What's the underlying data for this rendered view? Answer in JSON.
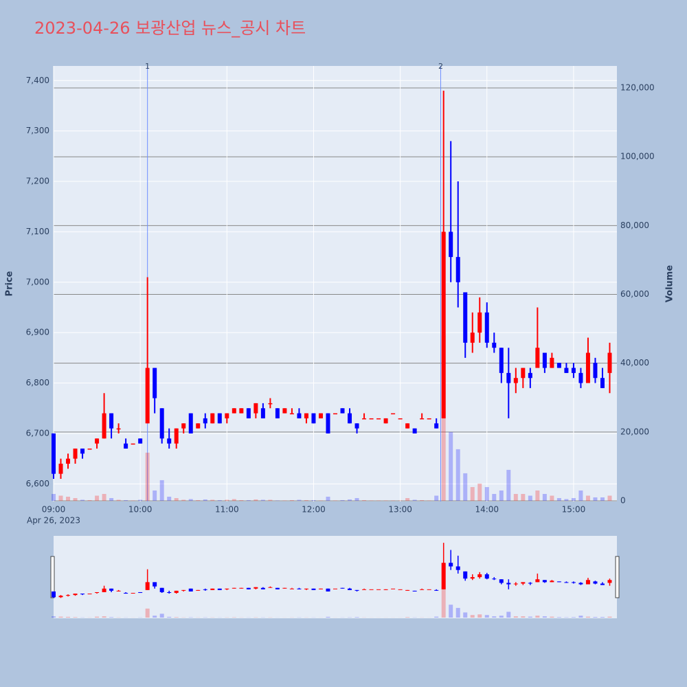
{
  "chart_data": {
    "type": "candlestick",
    "title": "2023-04-26 보광산업 뉴스_공시 차트",
    "y_label": "Price",
    "y2_label": "Volume",
    "x_date_label": "Apr 26, 2023",
    "up_color": "#ff0000",
    "down_color": "#0000ff",
    "xlim": [
      "09:00",
      "15:30"
    ],
    "xticks": [
      "09:00",
      "10:00",
      "11:00",
      "12:00",
      "13:00",
      "14:00",
      "15:00"
    ],
    "ylim": [
      6565,
      7429
    ],
    "yticks": [
      {
        "value": 6600,
        "label": "6,600"
      },
      {
        "value": 6700,
        "label": "6,700"
      },
      {
        "value": 6800,
        "label": "6,800"
      },
      {
        "value": 6900,
        "label": "6,900"
      },
      {
        "value": 7000,
        "label": "7,000"
      },
      {
        "value": 7100,
        "label": "7,100"
      },
      {
        "value": 7200,
        "label": "7,200"
      },
      {
        "value": 7300,
        "label": "7,300"
      },
      {
        "value": 7400,
        "label": "7,400"
      }
    ],
    "y2lim": [
      0,
      126600
    ],
    "y2ticks": [
      0,
      {
        "value": 20000,
        "label": "20,000"
      },
      {
        "value": 40000,
        "label": "40,000"
      },
      {
        "value": 60000,
        "label": "60,000"
      },
      {
        "value": 80000,
        "label": "80,000"
      },
      {
        "value": 100000,
        "label": "100,000"
      },
      {
        "value": 120000,
        "label": "120,000"
      }
    ],
    "annotations": [
      {
        "x": "10:05",
        "label": "1"
      },
      {
        "x": "13:28",
        "label": "2"
      }
    ],
    "x": [
      "09:00",
      "09:05",
      "09:10",
      "09:15",
      "09:20",
      "09:25",
      "09:30",
      "09:35",
      "09:40",
      "09:45",
      "09:50",
      "09:55",
      "10:00",
      "10:05",
      "10:10",
      "10:15",
      "10:20",
      "10:25",
      "10:30",
      "10:35",
      "10:40",
      "10:45",
      "10:50",
      "10:55",
      "11:00",
      "11:05",
      "11:10",
      "11:15",
      "11:20",
      "11:25",
      "11:30",
      "11:35",
      "11:40",
      "11:45",
      "11:50",
      "11:55",
      "12:00",
      "12:05",
      "12:10",
      "12:15",
      "12:20",
      "12:25",
      "12:30",
      "12:35",
      "12:40",
      "12:45",
      "12:50",
      "12:55",
      "13:00",
      "13:05",
      "13:10",
      "13:15",
      "13:20",
      "13:25",
      "13:30",
      "13:35",
      "13:40",
      "13:45",
      "13:50",
      "13:55",
      "14:00",
      "14:05",
      "14:10",
      "14:15",
      "14:20",
      "14:25",
      "14:30",
      "14:35",
      "14:40",
      "14:45",
      "14:50",
      "14:55",
      "15:00",
      "15:05",
      "15:10",
      "15:15",
      "15:20",
      "15:25"
    ],
    "open": [
      6700,
      6620,
      6640,
      6650,
      6670,
      6670,
      6680,
      6690,
      6740,
      6710,
      6680,
      6680,
      6690,
      6720,
      6830,
      6750,
      6690,
      6680,
      6710,
      6740,
      6710,
      6730,
      6720,
      6740,
      6730,
      6740,
      6740,
      6750,
      6740,
      6750,
      6760,
      6750,
      6740,
      6740,
      6740,
      6730,
      6740,
      6730,
      6740,
      6740,
      6750,
      6740,
      6720,
      6730,
      6730,
      6730,
      6720,
      6740,
      6730,
      6710,
      6710,
      6730,
      6730,
      6720,
      6730,
      7100,
      7050,
      6980,
      6880,
      6900,
      6940,
      6880,
      6870,
      6820,
      6800,
      6810,
      6820,
      6830,
      6860,
      6830,
      6840,
      6830,
      6830,
      6820,
      6800,
      6840,
      6810,
      6820
    ],
    "high": [
      6700,
      6650,
      6660,
      6670,
      6670,
      6670,
      6690,
      6780,
      6740,
      6720,
      6690,
      6680,
      6690,
      7010,
      6830,
      6750,
      6710,
      6710,
      6720,
      6740,
      6720,
      6740,
      6740,
      6740,
      6740,
      6750,
      6750,
      6750,
      6760,
      6760,
      6770,
      6750,
      6750,
      6750,
      6750,
      6740,
      6740,
      6740,
      6740,
      6740,
      6750,
      6750,
      6720,
      6740,
      6730,
      6730,
      6730,
      6740,
      6730,
      6720,
      6710,
      6740,
      6730,
      6730,
      7380,
      7280,
      7200,
      6980,
      6940,
      6970,
      6960,
      6900,
      6870,
      6870,
      6830,
      6830,
      6830,
      6950,
      6860,
      6860,
      6840,
      6840,
      6840,
      6830,
      6890,
      6850,
      6830,
      6880
    ],
    "low": [
      6610,
      6610,
      6630,
      6640,
      6650,
      6670,
      6670,
      6690,
      6690,
      6700,
      6670,
      6680,
      6680,
      6720,
      6740,
      6680,
      6670,
      6670,
      6700,
      6700,
      6710,
      6710,
      6720,
      6720,
      6720,
      6740,
      6740,
      6730,
      6730,
      6730,
      6750,
      6730,
      6740,
      6740,
      6730,
      6720,
      6720,
      6730,
      6700,
      6740,
      6740,
      6720,
      6700,
      6730,
      6730,
      6730,
      6720,
      6740,
      6730,
      6710,
      6700,
      6730,
      6730,
      6710,
      6730,
      7000,
      6950,
      6850,
      6860,
      6880,
      6870,
      6860,
      6800,
      6730,
      6780,
      6790,
      6790,
      6830,
      6820,
      6830,
      6830,
      6820,
      6810,
      6790,
      6800,
      6800,
      6790,
      6780
    ],
    "close": [
      6620,
      6640,
      6650,
      6670,
      6660,
      6670,
      6690,
      6740,
      6710,
      6710,
      6670,
      6680,
      6680,
      6830,
      6770,
      6690,
      6680,
      6710,
      6720,
      6700,
      6720,
      6720,
      6740,
      6720,
      6740,
      6750,
      6750,
      6730,
      6760,
      6730,
      6760,
      6730,
      6750,
      6740,
      6730,
      6740,
      6720,
      6740,
      6700,
      6740,
      6740,
      6720,
      6710,
      6730,
      6730,
      6730,
      6730,
      6740,
      6730,
      6720,
      6700,
      6730,
      6730,
      6710,
      7100,
      7050,
      7000,
      6880,
      6900,
      6940,
      6880,
      6870,
      6820,
      6800,
      6810,
      6830,
      6810,
      6870,
      6830,
      6850,
      6830,
      6820,
      6820,
      6800,
      6860,
      6810,
      6790,
      6860
    ],
    "volume": [
      2000,
      1500,
      1200,
      800,
      300,
      200,
      1500,
      2000,
      800,
      300,
      200,
      100,
      300,
      14000,
      3000,
      6000,
      1200,
      800,
      300,
      500,
      200,
      400,
      300,
      200,
      300,
      500,
      200,
      200,
      400,
      300,
      300,
      100,
      100,
      200,
      300,
      200,
      200,
      100,
      1200,
      100,
      200,
      400,
      800,
      200,
      100,
      100,
      100,
      100,
      100,
      800,
      300,
      200,
      100,
      1500,
      48000,
      20000,
      15000,
      8000,
      4000,
      5000,
      4000,
      2000,
      3000,
      9000,
      2000,
      2000,
      1500,
      3000,
      2000,
      1500,
      800,
      500,
      800,
      3000,
      1500,
      1000,
      1000,
      1500
    ]
  }
}
